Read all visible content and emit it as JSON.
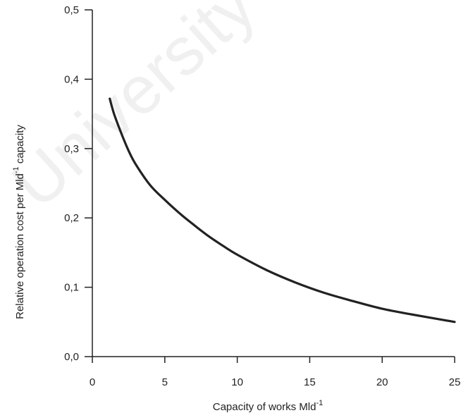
{
  "chart_data": {
    "type": "line",
    "xlabel": "Capacity of works Mld",
    "xlabel_superscript": "-1",
    "ylabel": "Relative operation cost per Mld",
    "ylabel_superscript": "-1",
    "ylabel_suffix": " capacity",
    "xlim": [
      0,
      25
    ],
    "ylim": [
      0,
      0.5
    ],
    "x_ticks": [
      0,
      5,
      10,
      15,
      20,
      25
    ],
    "x_tick_labels": [
      "0",
      "5",
      "10",
      "15",
      "20",
      "25"
    ],
    "y_ticks": [
      0,
      0.1,
      0.2,
      0.3,
      0.4,
      0.5
    ],
    "y_tick_labels": [
      "0,0",
      "0,1",
      "0,2",
      "0,3",
      "0,4",
      "0,5"
    ],
    "grid": false,
    "series": [
      {
        "x": [
          1.2,
          1.5,
          2,
          2.5,
          3,
          4,
          5,
          6,
          7,
          8,
          9,
          10,
          12,
          14,
          16,
          18,
          20,
          22,
          25
        ],
        "y": [
          0.372,
          0.35,
          0.322,
          0.297,
          0.277,
          0.247,
          0.226,
          0.207,
          0.19,
          0.174,
          0.16,
          0.147,
          0.125,
          0.107,
          0.092,
          0.08,
          0.069,
          0.061,
          0.05
        ]
      }
    ],
    "color": "#222222"
  },
  "watermark": {
    "text": "University"
  }
}
